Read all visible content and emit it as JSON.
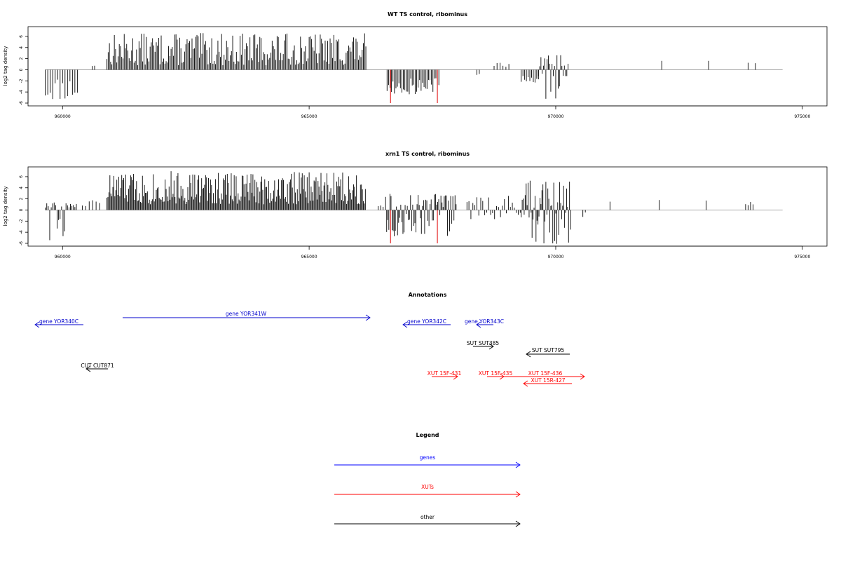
{
  "chart_data": [
    {
      "type": "bar",
      "title": "WT TS control, ribominus",
      "xlabel": "",
      "ylabel": "log2 tag density",
      "xlim": [
        959300,
        975500
      ],
      "ylim": [
        -6,
        7
      ],
      "xticks": [
        960000,
        965000,
        970000,
        975000
      ],
      "yticks": [
        -6,
        -4,
        -2,
        0,
        2,
        4,
        6
      ],
      "baseline_end": 974600,
      "highlight_color": "#e00000",
      "highlights": [
        [
          966650,
          -6
        ],
        [
          967600,
          -6
        ]
      ],
      "segments": [
        {
          "from": 959650,
          "to": 960300,
          "step": 50,
          "min": -5.5,
          "max": -1,
          "seed": 11
        },
        {
          "from": 960600,
          "to": 960650,
          "step": 50,
          "min": 0.6,
          "max": 1.0,
          "seed": 12
        },
        {
          "from": 960900,
          "to": 966150,
          "step": 25,
          "min": 0.8,
          "max": 6.6,
          "seed": 13
        },
        {
          "from": 966580,
          "to": 967650,
          "step": 30,
          "min": -4.5,
          "max": -1,
          "seed": 14
        },
        {
          "from": 968400,
          "to": 968450,
          "step": 50,
          "min": -1,
          "max": -0.6,
          "seed": 15
        },
        {
          "from": 968750,
          "to": 969050,
          "step": 60,
          "min": 0.5,
          "max": 1.5,
          "seed": 16
        },
        {
          "from": 969300,
          "to": 969650,
          "step": 35,
          "min": -2.5,
          "max": -0.8,
          "seed": 17
        },
        {
          "from": 969650,
          "to": 970250,
          "step": 25,
          "min": -5,
          "max": 2.8,
          "seed": 18
        },
        {
          "from": 972150,
          "to": 972150,
          "step": 50,
          "min": 1.6,
          "max": 1.6,
          "seed": 19
        },
        {
          "from": 973100,
          "to": 973100,
          "step": 50,
          "min": 1.6,
          "max": 1.6,
          "seed": 20
        },
        {
          "from": 973900,
          "to": 974050,
          "step": 150,
          "min": 1.0,
          "max": 2.3,
          "seed": 21
        }
      ]
    },
    {
      "type": "bar",
      "title": "xrn1 TS control, ribominus",
      "xlabel": "",
      "ylabel": "log2 tag density",
      "xlim": [
        959300,
        975500
      ],
      "ylim": [
        -6,
        7
      ],
      "xticks": [
        960000,
        965000,
        970000,
        975000
      ],
      "yticks": [
        -6,
        -4,
        -2,
        0,
        2,
        4,
        6
      ],
      "baseline_end": 974600,
      "highlight_color": "#e00000",
      "highlights": [
        [
          966650,
          -6
        ],
        [
          967600,
          -6
        ]
      ],
      "segments": [
        {
          "from": 959650,
          "to": 960300,
          "step": 30,
          "min": -5.2,
          "max": 1.0,
          "seed": 31
        },
        {
          "from": 960400,
          "to": 960750,
          "step": 70,
          "min": 0.5,
          "max": 2.0,
          "seed": 32
        },
        {
          "from": 960900,
          "to": 966150,
          "step": 20,
          "min": 1.0,
          "max": 7.0,
          "seed": 33
        },
        {
          "from": 966400,
          "to": 966500,
          "step": 50,
          "min": 0.5,
          "max": 1.5,
          "seed": 34
        },
        {
          "from": 966550,
          "to": 968000,
          "step": 22,
          "min": -4.5,
          "max": 2.5,
          "seed": 35
        },
        {
          "from": 968200,
          "to": 969300,
          "step": 40,
          "min": -1.5,
          "max": 2.2,
          "seed": 36
        },
        {
          "from": 969300,
          "to": 970300,
          "step": 20,
          "min": -6,
          "max": 5.0,
          "seed": 37
        },
        {
          "from": 970550,
          "to": 970600,
          "step": 50,
          "min": -1.0,
          "max": 1.2,
          "seed": 38
        },
        {
          "from": 971100,
          "to": 971100,
          "step": 50,
          "min": 1.5,
          "max": 1.5,
          "seed": 39
        },
        {
          "from": 972100,
          "to": 972100,
          "step": 50,
          "min": 1.8,
          "max": 1.8,
          "seed": 40
        },
        {
          "from": 973050,
          "to": 973050,
          "step": 50,
          "min": 1.7,
          "max": 1.7,
          "seed": 41
        },
        {
          "from": 973850,
          "to": 974000,
          "step": 50,
          "min": 0.8,
          "max": 2.0,
          "seed": 42
        }
      ]
    }
  ],
  "annotations": {
    "title": "Annotations",
    "items": [
      {
        "label": "gene YOR340C",
        "color": "#0000cc"
      },
      {
        "label": "gene YOR341W",
        "color": "#0000cc"
      },
      {
        "label": "gene YOR342C",
        "color": "#0000cc"
      },
      {
        "label": "gene YOR343C",
        "color": "#0000cc"
      },
      {
        "label": "SUT SUT385",
        "color": "#000000"
      },
      {
        "label": "SUT SUT795",
        "color": "#000000"
      },
      {
        "label": "CUT CUT871",
        "color": "#000000"
      },
      {
        "label": "XUT 15F-431",
        "color": "#ff0000"
      },
      {
        "label": "XUT 15F-435",
        "color": "#ff0000"
      },
      {
        "label": "XUT 15F-436",
        "color": "#ff0000"
      },
      {
        "label": "XUT 15R-427",
        "color": "#ff0000"
      }
    ]
  },
  "legend": {
    "title": "Legend",
    "items": [
      {
        "label": "genes",
        "color": "#0000ff"
      },
      {
        "label": "XUTs",
        "color": "#ff0000"
      },
      {
        "label": "other",
        "color": "#000000"
      }
    ]
  }
}
